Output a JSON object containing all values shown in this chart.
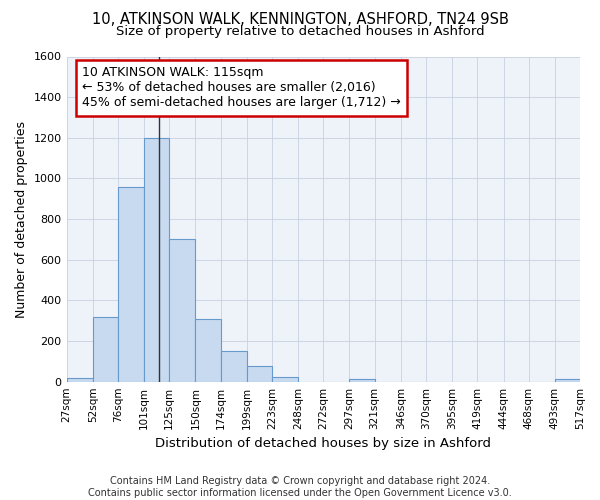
{
  "title_line1": "10, ATKINSON WALK, KENNINGTON, ASHFORD, TN24 9SB",
  "title_line2": "Size of property relative to detached houses in Ashford",
  "xlabel": "Distribution of detached houses by size in Ashford",
  "ylabel": "Number of detached properties",
  "bar_color": "#c8daf0",
  "bar_edgecolor": "#6699cc",
  "background_color": "#ffffff",
  "plot_bg_color": "#eef2f9",
  "annotation_text": "10 ATKINSON WALK: 115sqm\n← 53% of detached houses are smaller (2,016)\n45% of semi-detached houses are larger (1,712) →",
  "property_size": 115,
  "vline_color": "#333333",
  "bins": [
    27,
    52,
    76,
    101,
    125,
    150,
    174,
    199,
    223,
    248,
    272,
    297,
    321,
    346,
    370,
    395,
    419,
    444,
    468,
    493,
    517
  ],
  "counts": [
    20,
    320,
    960,
    1200,
    700,
    310,
    150,
    75,
    25,
    0,
    0,
    15,
    0,
    0,
    0,
    0,
    0,
    0,
    0,
    15
  ],
  "ylim": [
    0,
    1600
  ],
  "yticks": [
    0,
    200,
    400,
    600,
    800,
    1000,
    1200,
    1400,
    1600
  ],
  "footer": "Contains HM Land Registry data © Crown copyright and database right 2024.\nContains public sector information licensed under the Open Government Licence v3.0.",
  "title_fontsize": 10.5,
  "subtitle_fontsize": 9.5,
  "footer_fontsize": 7,
  "annotation_fontsize": 9,
  "ylabel_fontsize": 9,
  "xlabel_fontsize": 9.5,
  "annotation_box_color": "white",
  "annotation_box_edgecolor": "#cc0000",
  "grid_color": "#c8d0e0"
}
